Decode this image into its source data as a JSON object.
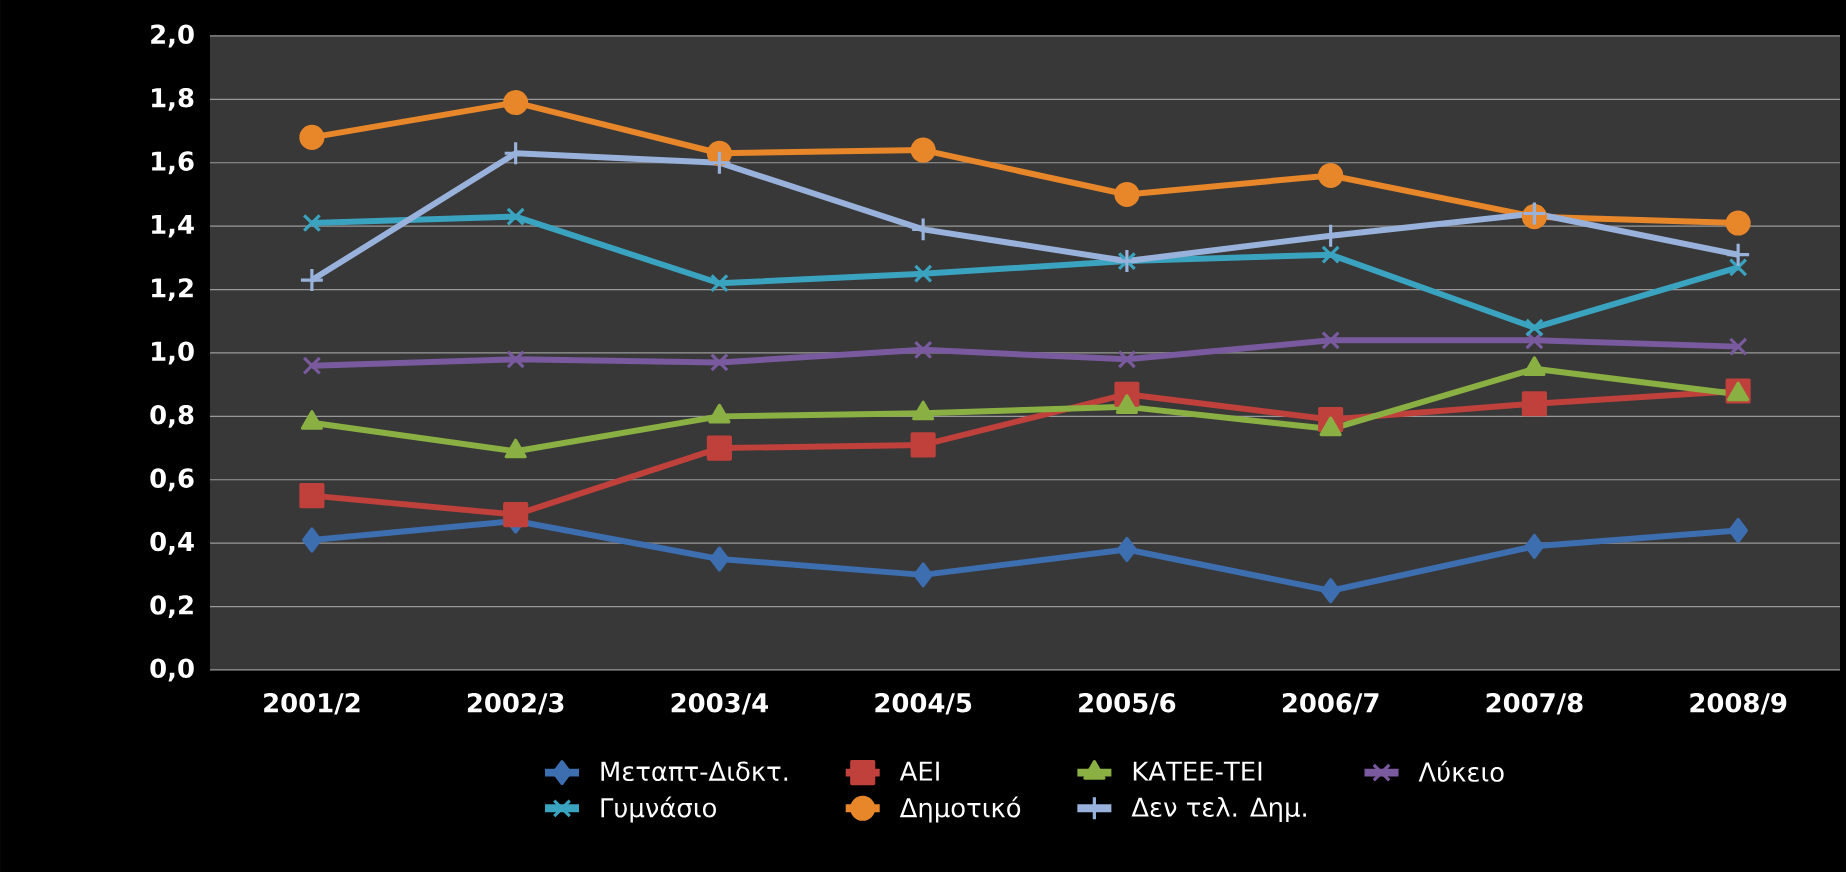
{
  "chart_data": {
    "type": "line",
    "categories": [
      "2001/2",
      "2002/3",
      "2003/4",
      "2004/5",
      "2005/6",
      "2006/7",
      "2007/8",
      "2008/9"
    ],
    "ylim": [
      0,
      2
    ],
    "yticks": [
      {
        "value": 0,
        "label": "0,0"
      },
      {
        "value": 0.2,
        "label": "0,2"
      },
      {
        "value": 0.4,
        "label": "0,4"
      },
      {
        "value": 0.6,
        "label": "0,6"
      },
      {
        "value": 0.8,
        "label": "0,8"
      },
      {
        "value": 1,
        "label": "1,0"
      },
      {
        "value": 1.2,
        "label": "1,2"
      },
      {
        "value": 1.4,
        "label": "1,4"
      },
      {
        "value": 1.6,
        "label": "1,6"
      },
      {
        "value": 1.8,
        "label": "1,8"
      },
      {
        "value": 2,
        "label": "2,0"
      }
    ],
    "grid": "y",
    "legend": "bottom",
    "series": [
      {
        "name": "Μεταπτ-Διδκτ.",
        "color": "#3d6eb0",
        "marker": "diamond",
        "values": [
          0.41,
          0.47,
          0.35,
          0.3,
          0.38,
          0.25,
          0.39,
          0.44
        ]
      },
      {
        "name": "ΑΕΙ",
        "color": "#c0403c",
        "marker": "square",
        "values": [
          0.55,
          0.49,
          0.7,
          0.71,
          0.87,
          0.79,
          0.84,
          0.88
        ]
      },
      {
        "name": "ΚΑΤΕΕ-ΤΕΙ",
        "color": "#8ab043",
        "marker": "triangle",
        "values": [
          0.78,
          0.69,
          0.8,
          0.81,
          0.83,
          0.76,
          0.95,
          0.87
        ]
      },
      {
        "name": "Λύκειο",
        "color": "#7a5a9e",
        "marker": "cross",
        "values": [
          0.96,
          0.98,
          0.97,
          1.01,
          0.98,
          1.04,
          1.04,
          1.02
        ]
      },
      {
        "name": "Γυμνάσιο",
        "color": "#3aa3bf",
        "marker": "cross",
        "values": [
          1.41,
          1.43,
          1.22,
          1.25,
          1.29,
          1.31,
          1.08,
          1.27
        ]
      },
      {
        "name": "Δημοτικό",
        "color": "#e8862a",
        "marker": "circle",
        "values": [
          1.68,
          1.79,
          1.63,
          1.64,
          1.5,
          1.56,
          1.43,
          1.41
        ]
      },
      {
        "name": "Δεν τελ. Δημ.",
        "color": "#99b2dc",
        "marker": "plus",
        "values": [
          1.23,
          1.63,
          1.6,
          1.39,
          1.29,
          1.37,
          1.44,
          1.31
        ]
      }
    ]
  }
}
